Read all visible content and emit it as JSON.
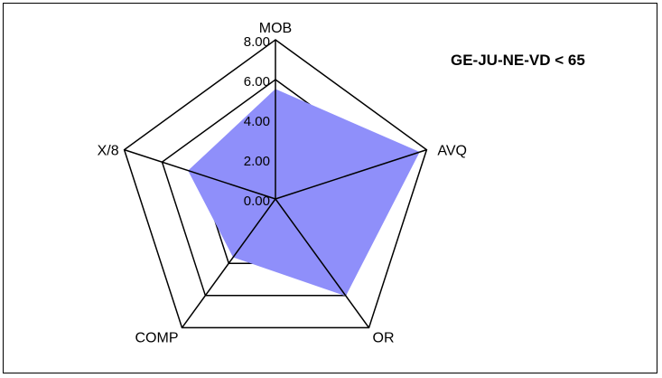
{
  "chart_data": {
    "type": "radar",
    "title": "GE-JU-NE-VD < 65",
    "axes": [
      "MOB",
      "AVQ",
      "OR",
      "COMP",
      "X/8"
    ],
    "tick_labels": [
      "0.00",
      "2.00",
      "4.00",
      "6.00",
      "8.00"
    ],
    "rmin": 0,
    "rmax": 8,
    "series": [
      {
        "values": [
          5.5,
          7.6,
          6.0,
          3.6,
          4.6
        ]
      }
    ],
    "series_color": "#8f8ffa",
    "grid_color": "#000000"
  }
}
